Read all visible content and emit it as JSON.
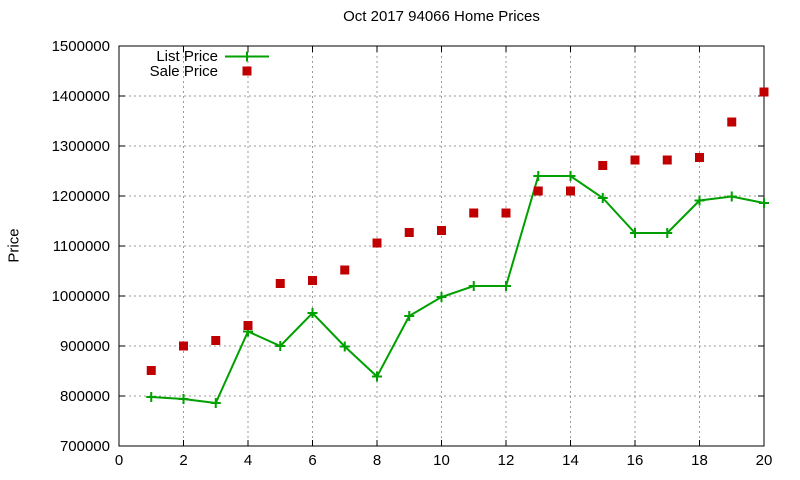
{
  "page": {
    "background": "#ffffff"
  },
  "chart_data": {
    "type": "line",
    "title": "Oct 2017 94066 Home Prices",
    "xlabel": "",
    "ylabel": "Price",
    "xlim": [
      0,
      20
    ],
    "ylim": [
      700000,
      1500000
    ],
    "x_ticks": [
      0,
      2,
      4,
      6,
      8,
      10,
      12,
      14,
      16,
      18,
      20
    ],
    "y_ticks": [
      700000,
      800000,
      900000,
      1000000,
      1100000,
      1200000,
      1300000,
      1400000,
      1500000
    ],
    "grid": true,
    "legend_position": "top-left",
    "x": [
      1,
      2,
      3,
      4,
      5,
      6,
      7,
      8,
      9,
      10,
      11,
      12,
      13,
      14,
      15,
      16,
      17,
      18,
      19,
      20
    ],
    "series": [
      {
        "name": "List Price",
        "color": "#00a000",
        "marker": "plus",
        "line": true,
        "values": [
          798000,
          794000,
          786000,
          929000,
          900000,
          966000,
          899000,
          839000,
          960000,
          998000,
          1020000,
          1020000,
          1240000,
          1240000,
          1196000,
          1126000,
          1126000,
          1191000,
          1199000,
          1186000
        ]
      },
      {
        "name": "Sale Price",
        "color": "#c00000",
        "marker": "square",
        "line": false,
        "values": [
          851000,
          900000,
          911000,
          941000,
          1025000,
          1031000,
          1052000,
          1106000,
          1127000,
          1131000,
          1166000,
          1166000,
          1210000,
          1210000,
          1261000,
          1272000,
          1272000,
          1277000,
          1348000,
          1408000
        ]
      }
    ]
  }
}
